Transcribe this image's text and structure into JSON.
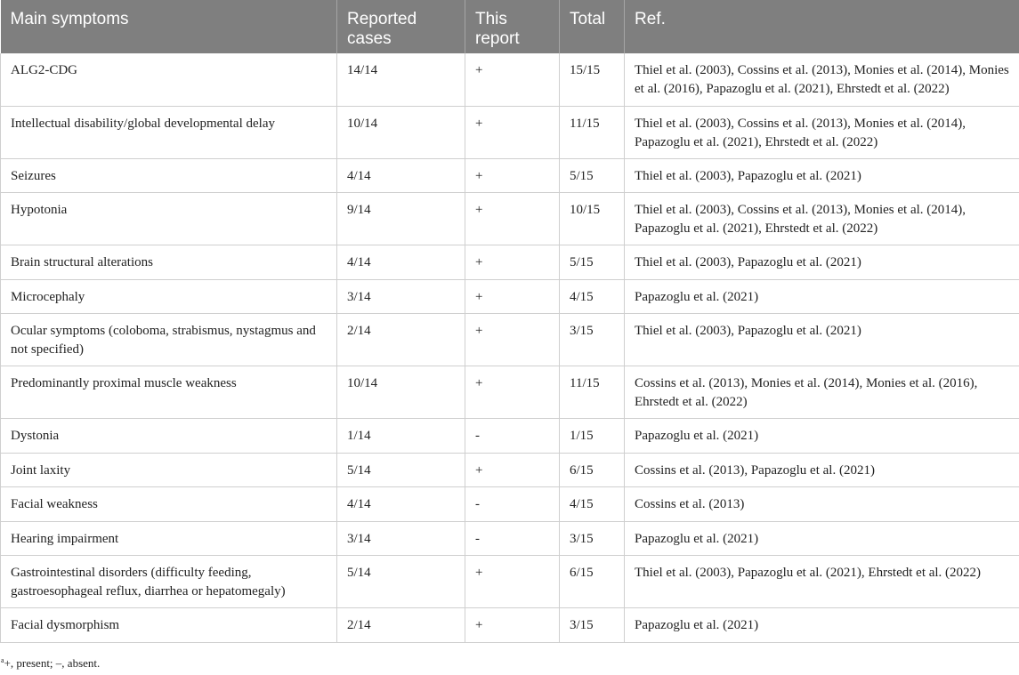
{
  "table": {
    "columns": [
      "Main symptoms",
      "Reported cases",
      "This report",
      "Total",
      "Ref."
    ],
    "rows": [
      {
        "symptom": "ALG2-CDG",
        "reported": "14/14",
        "this_report": "+",
        "total": "15/15",
        "ref": "Thiel et al. (2003), Cossins et al. (2013), Monies et al. (2014), Monies et al. (2016), Papazoglu et al. (2021), Ehrstedt et al. (2022)"
      },
      {
        "symptom": "Intellectual disability/global developmental delay",
        "reported": "10/14",
        "this_report": "+",
        "total": "11/15",
        "ref": "Thiel et al. (2003), Cossins et al. (2013), Monies et al. (2014), Papazoglu et al. (2021), Ehrstedt et al. (2022)"
      },
      {
        "symptom": "Seizures",
        "reported": "4/14",
        "this_report": "+",
        "total": "5/15",
        "ref": "Thiel et al. (2003), Papazoglu et al. (2021)"
      },
      {
        "symptom": "Hypotonia",
        "reported": "9/14",
        "this_report": "+",
        "total": "10/15",
        "ref": "Thiel et al. (2003), Cossins et al. (2013), Monies et al. (2014), Papazoglu et al. (2021), Ehrstedt et al. (2022)"
      },
      {
        "symptom": "Brain structural alterations",
        "reported": "4/14",
        "this_report": "+",
        "total": "5/15",
        "ref": "Thiel et al. (2003), Papazoglu et al. (2021)"
      },
      {
        "symptom": "Microcephaly",
        "reported": "3/14",
        "this_report": "+",
        "total": "4/15",
        "ref": "Papazoglu et al. (2021)"
      },
      {
        "symptom": "Ocular symptoms (coloboma, strabismus, nystagmus and not specified)",
        "reported": "2/14",
        "this_report": "+",
        "total": "3/15",
        "ref": "Thiel et al. (2003), Papazoglu et al. (2021)"
      },
      {
        "symptom": "Predominantly proximal muscle weakness",
        "reported": "10/14",
        "this_report": "+",
        "total": "11/15",
        "ref": "Cossins et al. (2013), Monies et al. (2014), Monies et al. (2016), Ehrstedt et al. (2022)"
      },
      {
        "symptom": "Dystonia",
        "reported": "1/14",
        "this_report": "-",
        "total": "1/15",
        "ref": "Papazoglu et al. (2021)"
      },
      {
        "symptom": "Joint laxity",
        "reported": "5/14",
        "this_report": "+",
        "total": "6/15",
        "ref": "Cossins et al. (2013), Papazoglu et al. (2021)"
      },
      {
        "symptom": "Facial weakness",
        "reported": "4/14",
        "this_report": "-",
        "total": "4/15",
        "ref": "Cossins et al. (2013)"
      },
      {
        "symptom": "Hearing impairment",
        "reported": "3/14",
        "this_report": "-",
        "total": "3/15",
        "ref": "Papazoglu et al. (2021)"
      },
      {
        "symptom": "Gastrointestinal disorders (difficulty feeding, gastroesophageal reflux, diarrhea or hepatomegaly)",
        "reported": "5/14",
        "this_report": "+",
        "total": "6/15",
        "ref": "Thiel et al. (2003), Papazoglu et al. (2021), Ehrstedt et al. (2022)"
      },
      {
        "symptom": "Facial dysmorphism",
        "reported": "2/14",
        "this_report": "+",
        "total": "3/15",
        "ref": "Papazoglu et al. (2021)"
      }
    ]
  },
  "footnote": {
    "marker": "a",
    "text": "+, present; –, absent."
  }
}
